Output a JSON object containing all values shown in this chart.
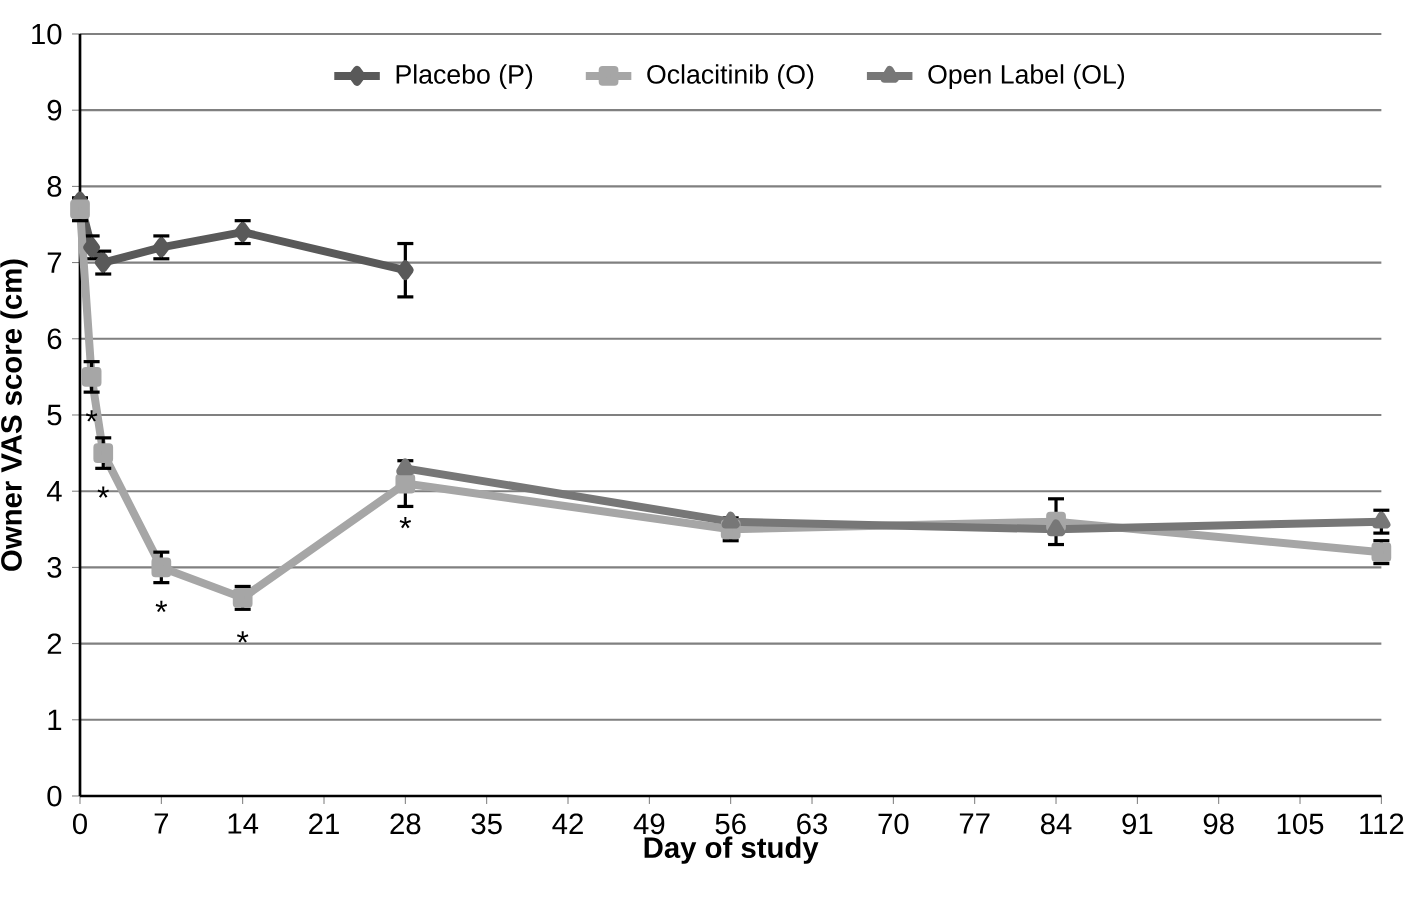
{
  "chart_data": {
    "type": "line",
    "xlabel": "Day of study",
    "ylabel": "Owner VAS score (cm)",
    "xlim": [
      0,
      112
    ],
    "ylim": [
      0,
      10
    ],
    "xticks": [
      0,
      7,
      14,
      21,
      28,
      35,
      42,
      49,
      56,
      63,
      70,
      77,
      84,
      91,
      98,
      105,
      112
    ],
    "yticks": [
      0,
      1,
      2,
      3,
      4,
      5,
      6,
      7,
      8,
      9,
      10
    ],
    "grid": "y",
    "legend": "top",
    "series": [
      {
        "name": "Placebo (P)",
        "color": "#595959",
        "marker": "diamond",
        "x": [
          0,
          1,
          2,
          7,
          14,
          28
        ],
        "values": [
          7.8,
          7.2,
          7.0,
          7.2,
          7.4,
          6.9
        ],
        "errors": [
          null,
          0.15,
          0.15,
          0.15,
          0.15,
          0.35
        ]
      },
      {
        "name": "Oclacitinib (O)",
        "color": "#a6a6a6",
        "marker": "square",
        "x": [
          0,
          1,
          2,
          7,
          14,
          28,
          56,
          84,
          112
        ],
        "values": [
          7.7,
          5.5,
          4.5,
          3.0,
          2.6,
          4.1,
          3.5,
          3.6,
          3.2
        ],
        "errors": [
          0.15,
          0.2,
          0.2,
          0.2,
          0.15,
          0.3,
          0.15,
          0.3,
          0.15
        ]
      },
      {
        "name": "Open Label (OL)",
        "color": "#777777",
        "marker": "triangle",
        "x": [
          28,
          56,
          84,
          112
        ],
        "values": [
          4.3,
          3.6,
          3.5,
          3.6
        ],
        "errors": [
          null,
          null,
          null,
          0.15
        ]
      }
    ],
    "annotations": [
      {
        "text": "*",
        "x": 1,
        "y": 5.5
      },
      {
        "text": "*",
        "x": 2,
        "y": 4.5
      },
      {
        "text": "*",
        "x": 7,
        "y": 3.0
      },
      {
        "text": "*",
        "x": 14,
        "y": 2.6
      },
      {
        "text": "*",
        "x": 28,
        "y": 4.1
      }
    ]
  }
}
